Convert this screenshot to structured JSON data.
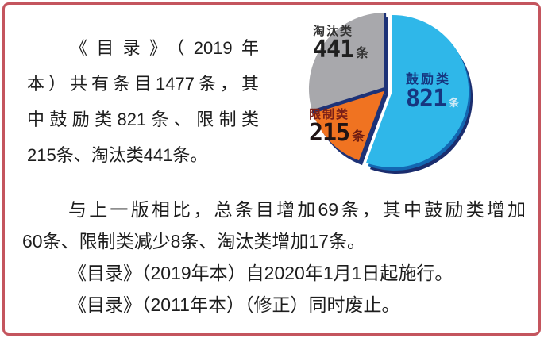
{
  "card": {
    "border_color": "#c4555e",
    "background": "#ffffff",
    "text_color": "#1d1d1d"
  },
  "intro": {
    "lines": [
      "《目录》（2019年",
      "本）共有条目1477条，其",
      "中鼓励类821条、限制类",
      "215条、淘汰类441条。"
    ]
  },
  "summary": {
    "lines": [
      "与上一版相比，总条目增加69条，其中鼓励类增加",
      "60条、限制类减少8条、淘汰类增加17条。",
      "《目录》（2019年本）自2020年1月1日起施行。",
      "《目录》（2011年本）（修正）同时废止。"
    ]
  },
  "chart_data": {
    "type": "pie",
    "total": 1477,
    "unit": "条",
    "legend_position": "on-slice",
    "explode_slice": "encouraged",
    "rim_color": "#1d3277",
    "slices": [
      {
        "key": "encouraged",
        "name": "鼓励类",
        "value": 821,
        "unit": "条",
        "color": "#2fb7e9",
        "label_color": "#16357f",
        "name_color": "#16357f",
        "unit_color": "#cfeaf6"
      },
      {
        "key": "restricted",
        "name": "限制类",
        "value": 215,
        "unit": "条",
        "color": "#f07321",
        "label_color": "#201414",
        "name_color": "#7a1f18",
        "unit_color": "#6d1b12"
      },
      {
        "key": "eliminated",
        "name": "淘汰类",
        "value": 441,
        "unit": "条",
        "color": "#a8a8ac",
        "label_color": "#1f1f1f",
        "name_color": "#333333",
        "unit_color": "#333333"
      }
    ]
  }
}
